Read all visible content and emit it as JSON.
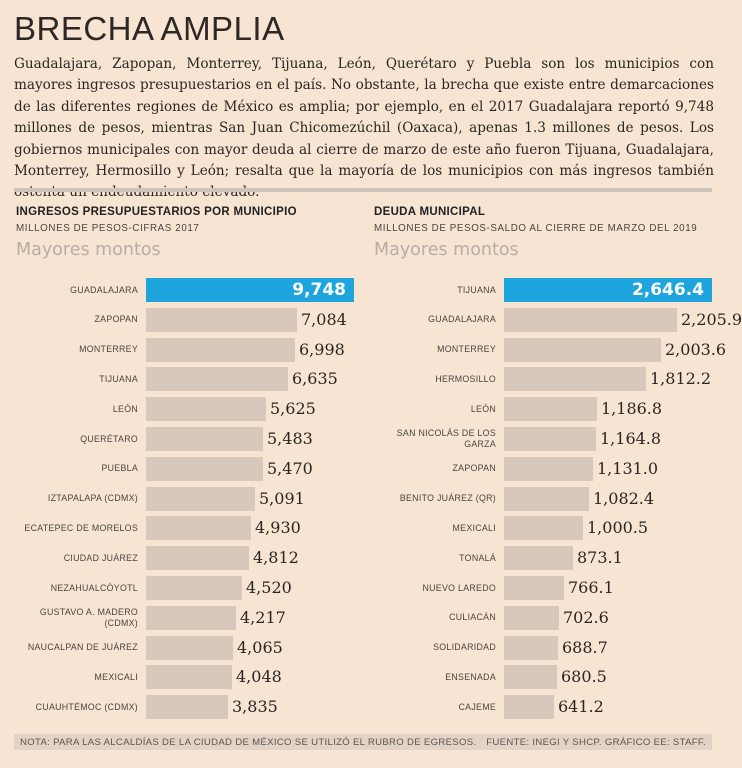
{
  "title": "BRECHA AMPLIA",
  "intro": "Guadalajara, Zapopan, Monterrey, Tijuana, León, Querétaro y Puebla son los municipios con mayores ingresos presupuestarios en el país. No obstante, la brecha que existe entre demarcaciones de las diferentes regiones de México es amplia; por ejemplo, en el 2017 Guadalajara reportó 9,748 millones de pesos, mientras San Juan Chicomezúchil (Oaxaca), apenas 1.3 millones de pesos. Los gobiernos municipales con mayor deuda al cierre de marzo de este año fueron Tijuana, Guadalajara, Monterrey, Hermosillo y León; resalta que la mayoría de los municipios con más ingresos también ostenta un endeudamiento elevado.",
  "colors": {
    "bar": "#d8c7bb",
    "highlight": "#1ea5dd",
    "background": "#f8e4d2"
  },
  "chart_data": [
    {
      "type": "bar",
      "orientation": "horizontal",
      "title": "INGRESOS PRESUPUESTARIOS POR MUNICIPIO",
      "subtitle": "MILLONES DE PESOS-CIFRAS 2017",
      "heading": "Mayores montos",
      "categories": [
        "GUADALAJARA",
        "ZAPOPAN",
        "MONTERREY",
        "TIJUANA",
        "LEÓN",
        "QUERÉTARO",
        "PUEBLA",
        "IZTAPALAPA (CDMX)",
        "ECATEPEC DE MORELOS",
        "CIUDAD JUÁREZ",
        "NEZAHUALCÓYOTL",
        "GUSTAVO A. MADERO (CDMX)",
        "NAUCALPAN DE JUÁREZ",
        "MEXICALI",
        "CUAUHTÉMOC (CDMX)"
      ],
      "values": [
        9748,
        7084,
        6998,
        6635,
        5625,
        5483,
        5470,
        5091,
        4930,
        4812,
        4520,
        4217,
        4065,
        4048,
        3835
      ],
      "labels": [
        "9,748",
        "7,084",
        "6,998",
        "6,635",
        "5,625",
        "5,483",
        "5,470",
        "5,091",
        "4,930",
        "4,812",
        "4,520",
        "4,217",
        "4,065",
        "4,048",
        "3,835"
      ],
      "highlight_index": 0,
      "xlim": [
        0,
        9748
      ]
    },
    {
      "type": "bar",
      "orientation": "horizontal",
      "title": "DEUDA MUNICIPAL",
      "subtitle": "MILLONES DE PESOS-SALDO AL CIERRE DE MARZO DEL 2019",
      "heading": "Mayores montos",
      "categories": [
        "TIJUANA",
        "GUADALAJARA",
        "MONTERREY",
        "HERMOSILLO",
        "LEÓN",
        "SAN NICOLÁS DE LOS GARZA",
        "ZAPOPAN",
        "BENITO JUÁREZ (QR)",
        "MEXICALI",
        "TONALÁ",
        "NUEVO LAREDO",
        "CULIACÁN",
        "SOLIDARIDAD",
        "ENSENADA",
        "CAJEME"
      ],
      "values": [
        2646.4,
        2205.9,
        2003.6,
        1812.2,
        1186.8,
        1164.8,
        1131.0,
        1082.4,
        1000.5,
        873.1,
        766.1,
        702.6,
        688.7,
        680.5,
        641.2
      ],
      "labels": [
        "2,646.4",
        "2,205.9",
        "2,003.6",
        "1,812.2",
        "1,186.8",
        "1,164.8",
        "1,131.0",
        "1,082.4",
        "1,000.5",
        "873.1",
        "766.1",
        "702.6",
        "688.7",
        "680.5",
        "641.2"
      ],
      "highlight_index": 0,
      "xlim": [
        0,
        2646.4
      ]
    }
  ],
  "footer": {
    "note": "NOTA: PARA LAS ALCALDÍAS DE LA CIUDAD DE MÉXICO SE UTILIZÓ EL RUBRO DE EGRESOS.",
    "source": "FUENTE: INEGI Y SHCP. GRÁFICO EE: STAFF."
  }
}
